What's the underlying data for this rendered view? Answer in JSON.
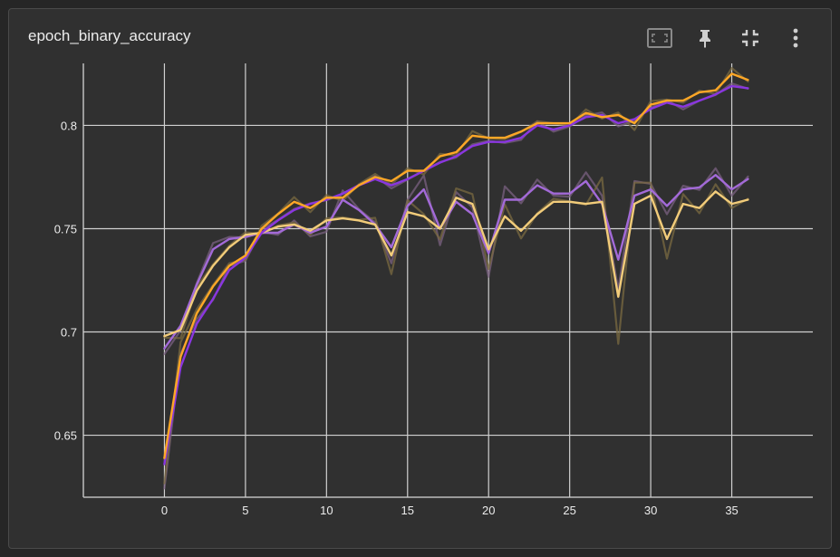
{
  "card": {
    "title": "epoch_binary_accuracy"
  },
  "toolbar": {
    "icons": [
      "fit-domain-icon",
      "pin-icon",
      "collapse-icon",
      "more-vert-icon"
    ]
  },
  "colors": {
    "background": "#303030",
    "grid": "#d0d0d0",
    "train_smoothed": "#ffa726",
    "validation_smoothed": "#8a36e0",
    "train_raw": "#7a6a40",
    "validation_raw": "#7a6080",
    "val_light": "#a36ad8",
    "train_light": "#f2cc7a"
  },
  "chart_data": {
    "type": "line",
    "title": "epoch_binary_accuracy",
    "xlabel": "",
    "ylabel": "",
    "xlim": [
      -5,
      40
    ],
    "ylim": [
      0.62,
      0.83
    ],
    "x_ticks": [
      0,
      5,
      10,
      15,
      20,
      25,
      30,
      35
    ],
    "y_ticks": [
      0.65,
      0.7,
      0.75,
      0.8
    ],
    "y_tick_labels": [
      "0.65",
      "0.7",
      "0.75",
      "0.8"
    ],
    "grid": true,
    "series": [
      {
        "style": "upper-orange",
        "x": [
          0,
          1,
          2,
          3,
          4,
          5,
          6,
          7,
          8,
          9,
          10,
          11,
          12,
          13,
          14,
          15,
          16,
          17,
          18,
          19,
          20,
          21,
          22,
          23,
          24,
          25,
          26,
          27,
          28,
          29,
          30,
          31,
          32,
          33,
          34,
          35,
          36
        ],
        "values": [
          0.639,
          0.688,
          0.709,
          0.722,
          0.732,
          0.737,
          0.75,
          0.757,
          0.763,
          0.76,
          0.765,
          0.765,
          0.771,
          0.775,
          0.773,
          0.778,
          0.778,
          0.785,
          0.787,
          0.795,
          0.794,
          0.794,
          0.797,
          0.801,
          0.801,
          0.801,
          0.806,
          0.804,
          0.805,
          0.801,
          0.81,
          0.812,
          0.812,
          0.816,
          0.817,
          0.825,
          0.822
        ]
      },
      {
        "style": "upper-purple",
        "x": [
          0,
          1,
          2,
          3,
          4,
          5,
          6,
          7,
          8,
          9,
          10,
          11,
          12,
          13,
          14,
          15,
          16,
          17,
          18,
          19,
          20,
          21,
          22,
          23,
          24,
          25,
          26,
          27,
          28,
          29,
          30,
          31,
          32,
          33,
          34,
          35,
          36
        ],
        "values": [
          0.636,
          0.683,
          0.704,
          0.716,
          0.73,
          0.736,
          0.748,
          0.754,
          0.759,
          0.762,
          0.764,
          0.767,
          0.771,
          0.774,
          0.771,
          0.774,
          0.778,
          0.782,
          0.785,
          0.79,
          0.792,
          0.792,
          0.794,
          0.8,
          0.798,
          0.8,
          0.804,
          0.805,
          0.801,
          0.803,
          0.808,
          0.811,
          0.809,
          0.812,
          0.815,
          0.819,
          0.818
        ]
      },
      {
        "style": "lower-purple",
        "x": [
          0,
          1,
          2,
          3,
          4,
          5,
          6,
          7,
          8,
          9,
          10,
          11,
          12,
          13,
          14,
          15,
          16,
          17,
          18,
          19,
          20,
          21,
          22,
          23,
          24,
          25,
          26,
          27,
          28,
          29,
          30,
          31,
          32,
          33,
          34,
          35,
          36
        ],
        "values": [
          0.692,
          0.703,
          0.723,
          0.74,
          0.745,
          0.746,
          0.748,
          0.748,
          0.752,
          0.748,
          0.751,
          0.764,
          0.759,
          0.752,
          0.741,
          0.761,
          0.769,
          0.75,
          0.763,
          0.757,
          0.738,
          0.764,
          0.764,
          0.771,
          0.767,
          0.767,
          0.773,
          0.762,
          0.735,
          0.766,
          0.769,
          0.761,
          0.769,
          0.77,
          0.776,
          0.769,
          0.774
        ]
      },
      {
        "style": "lower-yellow",
        "x": [
          0,
          1,
          2,
          3,
          4,
          5,
          6,
          7,
          8,
          9,
          10,
          11,
          12,
          13,
          14,
          15,
          16,
          17,
          18,
          19,
          20,
          21,
          22,
          23,
          24,
          25,
          26,
          27,
          28,
          29,
          30,
          31,
          32,
          33,
          34,
          35,
          36
        ],
        "values": [
          0.698,
          0.701,
          0.72,
          0.732,
          0.741,
          0.747,
          0.748,
          0.751,
          0.752,
          0.749,
          0.754,
          0.755,
          0.754,
          0.752,
          0.737,
          0.758,
          0.756,
          0.75,
          0.765,
          0.762,
          0.74,
          0.756,
          0.749,
          0.757,
          0.763,
          0.763,
          0.762,
          0.763,
          0.717,
          0.762,
          0.766,
          0.745,
          0.762,
          0.76,
          0.768,
          0.762,
          0.764
        ]
      }
    ]
  }
}
